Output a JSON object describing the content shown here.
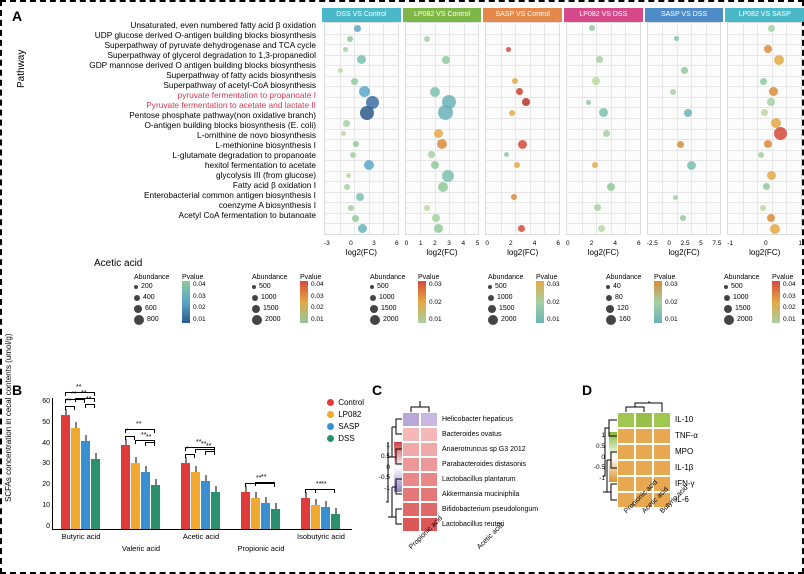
{
  "panelA": {
    "axis_label": "Pathway",
    "pathways": [
      {
        "label": "Unsaturated, even numbered fatty acid β oxidation",
        "hl": false
      },
      {
        "label": "UDP glucose derived O-antigen building blocks biosynthesis",
        "hl": false
      },
      {
        "label": "Superpathway of pyruvate dehydrogenase and TCA cycle",
        "hl": false
      },
      {
        "label": "Superpathway of glycerol degradation to 1,3-propanediol",
        "hl": false
      },
      {
        "label": "GDP mannose derived O antigen building blocks biosynthesis",
        "hl": false
      },
      {
        "label": "Superpathway of fatty acids biosynthesis",
        "hl": false
      },
      {
        "label": "Superpathway of acetyl-CoA biosynthesis",
        "hl": false
      },
      {
        "label": "pyruvate fermentation to propanoate I",
        "hl": true
      },
      {
        "label": "Pyruvate fermentation to acetate and lactate II",
        "hl": true
      },
      {
        "label": "Pentose phosphate pathway(non oxidative branch)",
        "hl": false
      },
      {
        "label": "O-antigen building blocks biosynthesis (E. coli)",
        "hl": false
      },
      {
        "label": "L-ornithine de novo  biosynthesis",
        "hl": false
      },
      {
        "label": "L-methionine biosynthesis I",
        "hl": false
      },
      {
        "label": "L-glutamate degradation to propanoate",
        "hl": false
      },
      {
        "label": "hexitol fermentation to acetate",
        "hl": false
      },
      {
        "label": "glycolysis III (from glucose)",
        "hl": false
      },
      {
        "label": "Fatty acid β oxidation I",
        "hl": false
      },
      {
        "label": "Enterobacterial common antigen biosynthesis I",
        "hl": false
      },
      {
        "label": "coenzyme A biosynthesis I",
        "hl": false
      },
      {
        "label": "Acetyl CoA fermentation to butanoate",
        "hl": false
      }
    ],
    "facets": [
      {
        "title": "DSS VS Control",
        "color": "#4bb8c9",
        "xticks": [
          "-3",
          "0",
          "3",
          "6"
        ],
        "xlabel": "log2(FC)",
        "bubbles": [
          {
            "row": 0,
            "x": 0.45,
            "size": 7,
            "color": "#5aa7c8"
          },
          {
            "row": 1,
            "x": 0.35,
            "size": 6,
            "color": "#8fc99a"
          },
          {
            "row": 2,
            "x": 0.28,
            "size": 5,
            "color": "#a1d0a0"
          },
          {
            "row": 3,
            "x": 0.5,
            "size": 9,
            "color": "#7bbfaf"
          },
          {
            "row": 4,
            "x": 0.22,
            "size": 5,
            "color": "#bcd89e"
          },
          {
            "row": 5,
            "x": 0.4,
            "size": 7,
            "color": "#8fc99a"
          },
          {
            "row": 6,
            "x": 0.55,
            "size": 11,
            "color": "#5aa7c8"
          },
          {
            "row": 7,
            "x": 0.65,
            "size": 13,
            "color": "#3a6ea5"
          },
          {
            "row": 8,
            "x": 0.58,
            "size": 14,
            "color": "#2e5a8c"
          },
          {
            "row": 9,
            "x": 0.3,
            "size": 7,
            "color": "#a5d1a2"
          },
          {
            "row": 10,
            "x": 0.25,
            "size": 5,
            "color": "#bcd89e"
          },
          {
            "row": 11,
            "x": 0.42,
            "size": 6,
            "color": "#8fc99a"
          },
          {
            "row": 12,
            "x": 0.38,
            "size": 6,
            "color": "#a5d1a2"
          },
          {
            "row": 13,
            "x": 0.6,
            "size": 10,
            "color": "#5aa7c8"
          },
          {
            "row": 14,
            "x": 0.33,
            "size": 5,
            "color": "#bcd89e"
          },
          {
            "row": 15,
            "x": 0.3,
            "size": 6,
            "color": "#a5d1a2"
          },
          {
            "row": 16,
            "x": 0.48,
            "size": 8,
            "color": "#7bbfaf"
          },
          {
            "row": 17,
            "x": 0.36,
            "size": 6,
            "color": "#a5d1a2"
          },
          {
            "row": 18,
            "x": 0.42,
            "size": 7,
            "color": "#8fc99a"
          },
          {
            "row": 19,
            "x": 0.52,
            "size": 9,
            "color": "#6ab3b8"
          }
        ]
      },
      {
        "title": "LP082 VS Control",
        "color": "#7fb648",
        "xticks": [
          "0",
          "1",
          "2",
          "3",
          "4",
          "5"
        ],
        "xlabel": "log2(FC)",
        "bubbles": [
          {
            "row": 1,
            "x": 0.3,
            "size": 6,
            "color": "#a5d1a2"
          },
          {
            "row": 3,
            "x": 0.55,
            "size": 8,
            "color": "#8fc99a"
          },
          {
            "row": 6,
            "x": 0.4,
            "size": 10,
            "color": "#7bbfaf"
          },
          {
            "row": 7,
            "x": 0.6,
            "size": 14,
            "color": "#6ab3b8"
          },
          {
            "row": 8,
            "x": 0.55,
            "size": 15,
            "color": "#6ab3b8"
          },
          {
            "row": 10,
            "x": 0.45,
            "size": 9,
            "color": "#e4a845"
          },
          {
            "row": 11,
            "x": 0.5,
            "size": 10,
            "color": "#d98b3c"
          },
          {
            "row": 12,
            "x": 0.35,
            "size": 7,
            "color": "#a5d1a2"
          },
          {
            "row": 13,
            "x": 0.4,
            "size": 8,
            "color": "#8fc99a"
          },
          {
            "row": 14,
            "x": 0.58,
            "size": 12,
            "color": "#7bbfaf"
          },
          {
            "row": 15,
            "x": 0.52,
            "size": 10,
            "color": "#8fc99a"
          },
          {
            "row": 17,
            "x": 0.3,
            "size": 6,
            "color": "#bcd89e"
          },
          {
            "row": 18,
            "x": 0.42,
            "size": 8,
            "color": "#a5d1a2"
          },
          {
            "row": 19,
            "x": 0.45,
            "size": 9,
            "color": "#8fc99a"
          }
        ]
      },
      {
        "title": "SASP VS Control",
        "color": "#e4894b",
        "xticks": [
          "0",
          "2",
          "4",
          "6"
        ],
        "xlabel": "log2(FC)",
        "bubbles": [
          {
            "row": 2,
            "x": 0.3,
            "size": 5,
            "color": "#d44a3a"
          },
          {
            "row": 5,
            "x": 0.4,
            "size": 6,
            "color": "#e4a845"
          },
          {
            "row": 6,
            "x": 0.45,
            "size": 7,
            "color": "#c8412e"
          },
          {
            "row": 7,
            "x": 0.55,
            "size": 8,
            "color": "#b73428"
          },
          {
            "row": 8,
            "x": 0.35,
            "size": 6,
            "color": "#e4a845"
          },
          {
            "row": 11,
            "x": 0.5,
            "size": 9,
            "color": "#d44a3a"
          },
          {
            "row": 12,
            "x": 0.28,
            "size": 5,
            "color": "#8fc99a"
          },
          {
            "row": 13,
            "x": 0.42,
            "size": 6,
            "color": "#e4a845"
          },
          {
            "row": 16,
            "x": 0.38,
            "size": 6,
            "color": "#d98b3c"
          },
          {
            "row": 19,
            "x": 0.48,
            "size": 7,
            "color": "#d44a3a"
          }
        ]
      },
      {
        "title": "LP082 VS DSS",
        "color": "#d64a8c",
        "xticks": [
          "0",
          "2",
          "4",
          "6"
        ],
        "xlabel": "log2(FC)",
        "bubbles": [
          {
            "row": 0,
            "x": 0.35,
            "size": 6,
            "color": "#8fc99a"
          },
          {
            "row": 3,
            "x": 0.45,
            "size": 7,
            "color": "#a5d1a2"
          },
          {
            "row": 5,
            "x": 0.4,
            "size": 8,
            "color": "#bcd89e"
          },
          {
            "row": 7,
            "x": 0.3,
            "size": 5,
            "color": "#8fc99a"
          },
          {
            "row": 8,
            "x": 0.5,
            "size": 9,
            "color": "#7bbfaf"
          },
          {
            "row": 10,
            "x": 0.55,
            "size": 7,
            "color": "#a5d1a2"
          },
          {
            "row": 13,
            "x": 0.38,
            "size": 6,
            "color": "#e4a845"
          },
          {
            "row": 15,
            "x": 0.6,
            "size": 8,
            "color": "#8fc99a"
          },
          {
            "row": 17,
            "x": 0.42,
            "size": 7,
            "color": "#a5d1a2"
          },
          {
            "row": 19,
            "x": 0.48,
            "size": 7,
            "color": "#bcd89e"
          }
        ]
      },
      {
        "title": "SASP VS DSS",
        "color": "#4e8cc7",
        "xticks": [
          "-2.5",
          "0",
          "2.5",
          "5",
          "7.5"
        ],
        "xlabel": "log2(FC)",
        "bubbles": [
          {
            "row": 1,
            "x": 0.4,
            "size": 5,
            "color": "#7bbfaf"
          },
          {
            "row": 4,
            "x": 0.5,
            "size": 7,
            "color": "#8fc99a"
          },
          {
            "row": 6,
            "x": 0.35,
            "size": 6,
            "color": "#a5d1a2"
          },
          {
            "row": 8,
            "x": 0.55,
            "size": 8,
            "color": "#6ab3b8"
          },
          {
            "row": 11,
            "x": 0.45,
            "size": 7,
            "color": "#d98b3c"
          },
          {
            "row": 13,
            "x": 0.6,
            "size": 9,
            "color": "#7bbfaf"
          },
          {
            "row": 16,
            "x": 0.38,
            "size": 5,
            "color": "#a5d1a2"
          },
          {
            "row": 18,
            "x": 0.48,
            "size": 6,
            "color": "#8fc99a"
          }
        ]
      },
      {
        "title": "LP082 VS SASP",
        "color": "#4bb8c9",
        "xticks": [
          "-1",
          "0",
          "1"
        ],
        "xlabel": "log2(FC)",
        "bubbles": [
          {
            "row": 0,
            "x": 0.6,
            "size": 7,
            "color": "#a5d1a2"
          },
          {
            "row": 2,
            "x": 0.55,
            "size": 8,
            "color": "#d98b3c"
          },
          {
            "row": 3,
            "x": 0.7,
            "size": 10,
            "color": "#e4a845"
          },
          {
            "row": 5,
            "x": 0.48,
            "size": 7,
            "color": "#8fc99a"
          },
          {
            "row": 6,
            "x": 0.62,
            "size": 9,
            "color": "#d98b3c"
          },
          {
            "row": 7,
            "x": 0.58,
            "size": 8,
            "color": "#a5d1a2"
          },
          {
            "row": 8,
            "x": 0.5,
            "size": 7,
            "color": "#bcd89e"
          },
          {
            "row": 9,
            "x": 0.65,
            "size": 10,
            "color": "#e4a845"
          },
          {
            "row": 10,
            "x": 0.72,
            "size": 13,
            "color": "#d44a3a"
          },
          {
            "row": 11,
            "x": 0.55,
            "size": 8,
            "color": "#d98b3c"
          },
          {
            "row": 12,
            "x": 0.45,
            "size": 6,
            "color": "#a5d1a2"
          },
          {
            "row": 14,
            "x": 0.6,
            "size": 9,
            "color": "#e4a845"
          },
          {
            "row": 15,
            "x": 0.52,
            "size": 7,
            "color": "#8fc99a"
          },
          {
            "row": 17,
            "x": 0.48,
            "size": 6,
            "color": "#bcd89e"
          },
          {
            "row": 18,
            "x": 0.58,
            "size": 8,
            "color": "#d98b3c"
          },
          {
            "row": 19,
            "x": 0.64,
            "size": 10,
            "color": "#e4a845"
          }
        ]
      }
    ],
    "legend_title": "Acetic acid",
    "legend_columns": [
      {
        "abund": [
          "200",
          "400",
          "600",
          "800"
        ],
        "pval": [
          "0.04",
          "0.03",
          "0.02",
          "0.01"
        ],
        "grad": [
          "#8fc99a",
          "#5aa7c8",
          "#2e5a8c"
        ]
      },
      {
        "abund": [
          "500",
          "1000",
          "1500",
          "2000"
        ],
        "pval": [
          "0.04",
          "0.03",
          "0.02",
          "0.01"
        ],
        "grad": [
          "#d44a3a",
          "#e4a845",
          "#8fc99a"
        ]
      },
      {
        "abund": [
          "500",
          "1000",
          "1500",
          "2000"
        ],
        "pval": [
          "0.03",
          "0.02",
          "0.01"
        ],
        "grad": [
          "#d44a3a",
          "#e4a845",
          "#a5d1a2"
        ]
      },
      {
        "abund": [
          "500",
          "1000",
          "1500",
          "2000"
        ],
        "pval": [
          "0.03",
          "0.02",
          "0.01"
        ],
        "grad": [
          "#e4a845",
          "#a5d1a2",
          "#6ab3b8"
        ]
      },
      {
        "abund": [
          "40",
          "80",
          "120",
          "160"
        ],
        "pval": [
          "0.03",
          "0.02",
          "0.01"
        ],
        "grad": [
          "#d98b3c",
          "#a5d1a2",
          "#6ab3b8"
        ]
      },
      {
        "abund": [
          "500",
          "1000",
          "1500",
          "2000"
        ],
        "pval": [
          "0.04",
          "0.03",
          "0.02",
          "0.01"
        ],
        "grad": [
          "#d44a3a",
          "#e4a845",
          "#a5d1a2"
        ]
      }
    ]
  },
  "panelB": {
    "ylabel": "SCFAs concentration\nin cecal contents (umol/g)",
    "ymax": 60,
    "yticks": [
      "0",
      "10",
      "20",
      "30",
      "40",
      "50",
      "60"
    ],
    "categories": [
      "Butyric acid",
      "Valeric acid",
      "Acetic acid",
      "Propionic acid",
      "Isobutyric acid"
    ],
    "groups": [
      {
        "name": "Control",
        "color": "#e03a3a"
      },
      {
        "name": "LP082",
        "color": "#f0a830"
      },
      {
        "name": "SASP",
        "color": "#3a8fd0"
      },
      {
        "name": "DSS",
        "color": "#2a9070"
      }
    ],
    "data": [
      [
        52,
        46,
        40,
        32
      ],
      [
        38,
        30,
        26,
        20
      ],
      [
        30,
        26,
        22,
        17
      ],
      [
        17,
        14,
        12,
        9
      ],
      [
        14,
        11,
        10,
        7
      ]
    ],
    "sig": [
      [
        [
          "**",
          0,
          1
        ],
        [
          "**",
          0,
          2
        ],
        [
          "**",
          0,
          3
        ],
        [
          "**",
          1,
          3
        ],
        [
          "**",
          2,
          3
        ]
      ],
      [
        [
          "*",
          0,
          1
        ],
        [
          "**",
          0,
          3
        ],
        [
          "**",
          1,
          3
        ],
        [
          "**",
          2,
          3
        ]
      ],
      [
        [
          "*",
          0,
          1
        ],
        [
          "**",
          0,
          3
        ],
        [
          "**",
          1,
          3
        ],
        [
          "**",
          2,
          3
        ]
      ],
      [
        [
          "**",
          0,
          3
        ],
        [
          "**",
          1,
          3
        ]
      ],
      [
        [
          "**",
          0,
          3
        ],
        [
          "**",
          1,
          3
        ]
      ]
    ]
  },
  "panelC": {
    "rows": [
      "Helicobacter hepaticus",
      "Bacteroides ovatus",
      "Anaerotruncus sp G3 2012",
      "Parabacteroides distasonis",
      "Lactobacillus plantarum",
      "Akkermansia muciniphila",
      "Bifidobacterium pseudolongum",
      "Lactobacillus reuteri"
    ],
    "cols": [
      "Propionic acid",
      "Acetic acid"
    ],
    "scale_ticks": [
      "1",
      "0.5",
      "0",
      "-0.5",
      "-1"
    ],
    "values": [
      [
        "#b8a8d8",
        "#c8b8e0"
      ],
      [
        "#f5b8b8",
        "#f5b8b8"
      ],
      [
        "#f0a8a8",
        "#f0a8a8"
      ],
      [
        "#ec9898",
        "#ec9898"
      ],
      [
        "#e88888",
        "#e88888"
      ],
      [
        "#e47878",
        "#e47878"
      ],
      [
        "#e06868",
        "#e06868"
      ],
      [
        "#dc5858",
        "#dc5858"
      ]
    ],
    "grad": [
      "#d04040",
      "#ffffff",
      "#9080c0"
    ]
  },
  "panelD": {
    "rows": [
      "IL-10",
      "TNF-α",
      "MPO",
      "IL-1β",
      "IFN-γ",
      "IL-6"
    ],
    "cols": [
      "Propionic acid",
      "Acetic acid",
      "Butyric acid"
    ],
    "scale_ticks": [
      "1",
      "0.5",
      "0",
      "-0.5",
      "-1"
    ],
    "values": [
      [
        "#a0c850",
        "#98c048",
        "#a0c850"
      ],
      [
        "#e8a850",
        "#e8a850",
        "#e8a850"
      ],
      [
        "#e8a850",
        "#e8a850",
        "#e8a850"
      ],
      [
        "#e8a850",
        "#e8a850",
        "#e8a850"
      ],
      [
        "#e8a850",
        "#e8a850",
        "#e8a850"
      ],
      [
        "#e8a850",
        "#e8a850",
        "#e8a850"
      ]
    ],
    "grad": [
      "#88b838",
      "#ffffff",
      "#e09030"
    ]
  }
}
